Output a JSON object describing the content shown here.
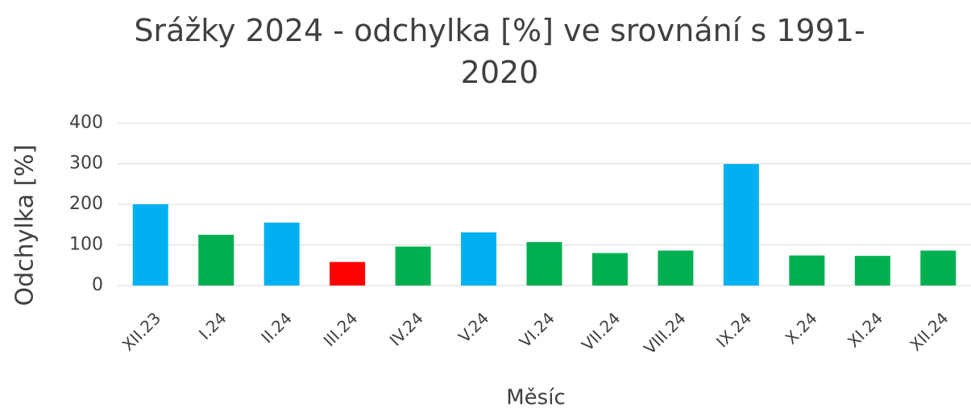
{
  "chart_data": {
    "type": "bar",
    "title": "Srážky 2024 - odchylka [%] ve srovnání s 1991-2020",
    "x_label": "Měsíc",
    "y_label": "Odchylka [%]",
    "categories": [
      "XII.23",
      "I.24",
      "II.24",
      "III.24",
      "IV.24",
      "V.24",
      "VI.24",
      "VII.24",
      "VIII.24",
      "IX.24",
      "X.24",
      "XI.24",
      "XII.24"
    ],
    "values": [
      200,
      125,
      155,
      58,
      96,
      131,
      107,
      80,
      86,
      299,
      74,
      73,
      86
    ],
    "colors": [
      "#00b0f0",
      "#00b050",
      "#00b0f0",
      "#ff0000",
      "#00b050",
      "#00b0f0",
      "#00b050",
      "#00b050",
      "#00b050",
      "#00b0f0",
      "#00b050",
      "#00b050",
      "#00b050"
    ],
    "ylim": [
      0,
      400
    ],
    "yticks": [
      0,
      100,
      200,
      300,
      400
    ],
    "grid": true
  }
}
